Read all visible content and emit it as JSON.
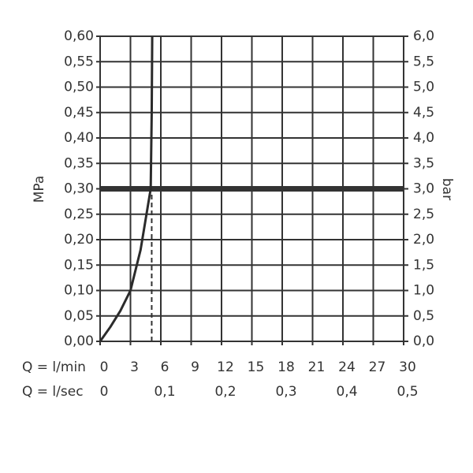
{
  "chart_data": {
    "type": "line",
    "ylabel": "MPa",
    "y2label": "bar",
    "xlabel": "Q = l/min",
    "x2label": "Q = l/sec",
    "x": [
      0,
      1,
      2,
      3,
      4,
      4.5,
      5,
      5.1,
      5.15
    ],
    "series": [
      {
        "color": "#2b2b2b",
        "values": [
          0,
          0.028,
          0.06,
          0.1,
          0.18,
          0.24,
          0.3,
          0.45,
          0.6
        ]
      }
    ],
    "xlim": [
      0,
      30
    ],
    "xticks": [
      0,
      3,
      6,
      9,
      12,
      15,
      18,
      21,
      24,
      27,
      30
    ],
    "x2lim": [
      0,
      0.5
    ],
    "x2ticks": [
      0,
      {
        "value": 0.1,
        "label": "0,1"
      },
      {
        "value": 0.2,
        "label": "0,2"
      },
      {
        "value": 0.3,
        "label": "0,3"
      },
      {
        "value": 0.4,
        "label": "0,4"
      },
      {
        "value": 0.5,
        "label": "0,5"
      }
    ],
    "ylim": [
      0,
      0.6
    ],
    "yticks": [
      {
        "value": 0,
        "label": "0,00"
      },
      {
        "value": 0.05,
        "label": "0,05"
      },
      {
        "value": 0.1,
        "label": "0,10"
      },
      {
        "value": 0.15,
        "label": "0,15"
      },
      {
        "value": 0.2,
        "label": "0,20"
      },
      {
        "value": 0.25,
        "label": "0,25"
      },
      {
        "value": 0.3,
        "label": "0,30"
      },
      {
        "value": 0.35,
        "label": "0,35"
      },
      {
        "value": 0.4,
        "label": "0,40"
      },
      {
        "value": 0.45,
        "label": "0,45"
      },
      {
        "value": 0.5,
        "label": "0,50"
      },
      {
        "value": 0.55,
        "label": "0,55"
      },
      {
        "value": 0.6,
        "label": "0,60"
      }
    ],
    "y2lim": [
      0,
      6
    ],
    "y2ticks": [
      {
        "value": 0,
        "label": "0,0"
      },
      {
        "value": 0.5,
        "label": "0,5"
      },
      {
        "value": 1,
        "label": "1,0"
      },
      {
        "value": 1.5,
        "label": "1,5"
      },
      {
        "value": 2,
        "label": "2,0"
      },
      {
        "value": 2.5,
        "label": "2,5"
      },
      {
        "value": 3,
        "label": "3,0"
      },
      {
        "value": 3.5,
        "label": "3,5"
      },
      {
        "value": 4,
        "label": "4,0"
      },
      {
        "value": 4.5,
        "label": "4,5"
      },
      {
        "value": 5,
        "label": "5,0"
      },
      {
        "value": 5.5,
        "label": "5,5"
      },
      {
        "value": 6,
        "label": "6,0"
      }
    ],
    "hline": 0.3,
    "vline": 5.1,
    "grid": true
  }
}
